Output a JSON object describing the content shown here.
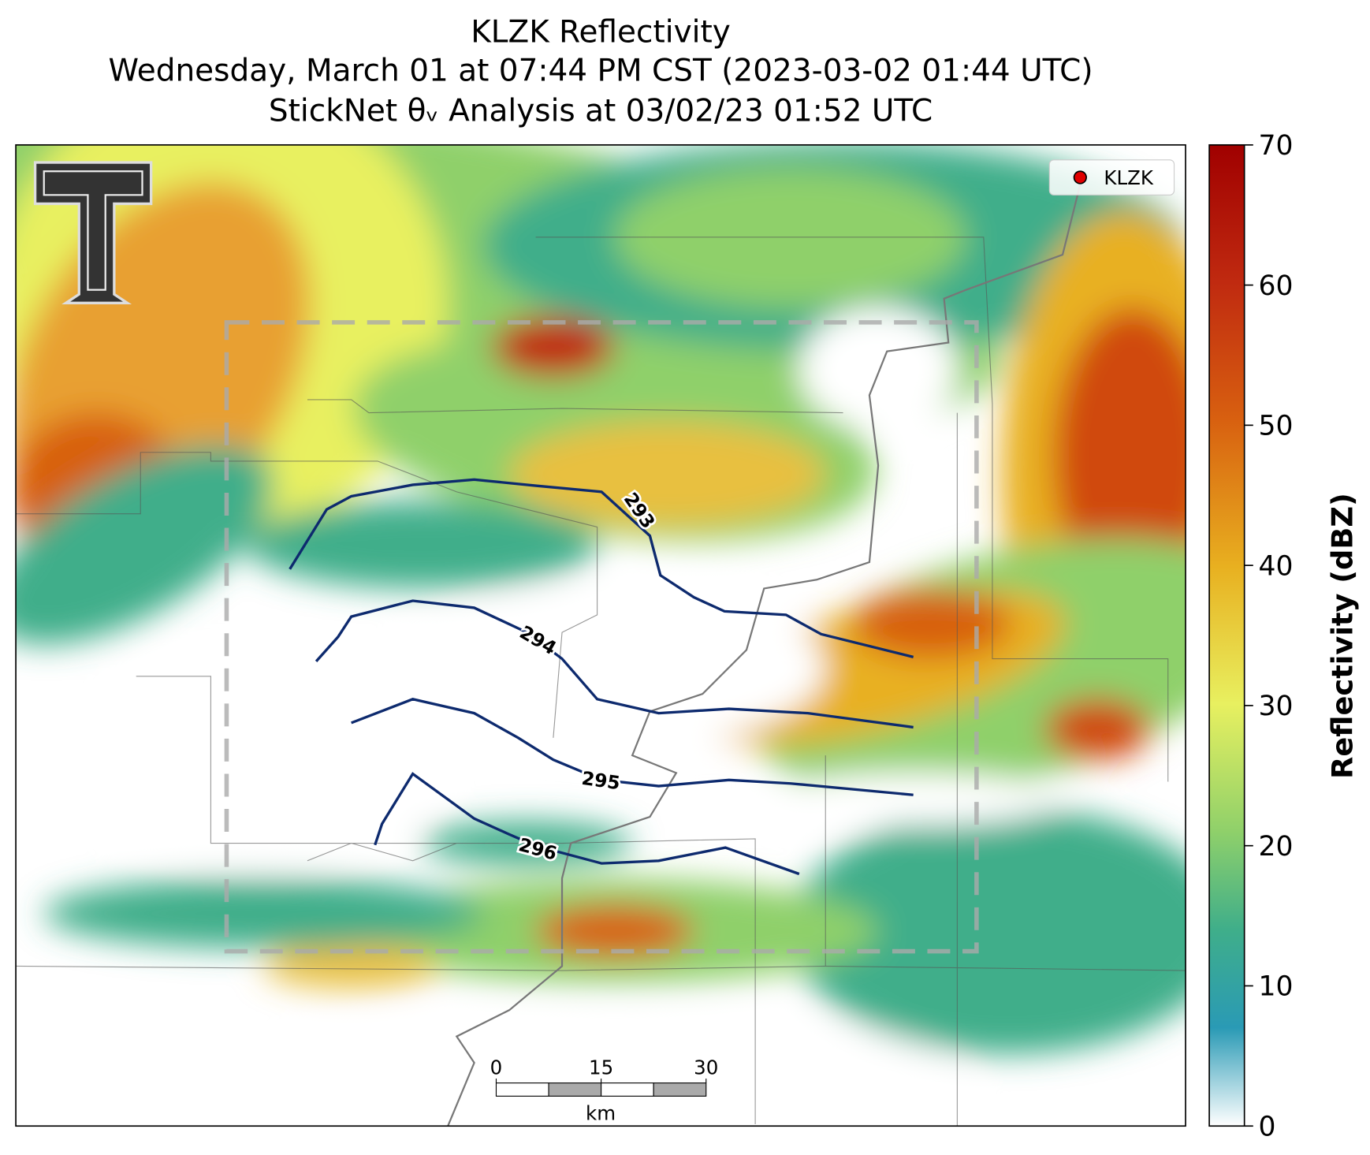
{
  "header": {
    "title_lines": [
      "KLZK Reflectivity",
      "Wednesday, March 01 at 07:44 PM CST (2023-03-02 01:44 UTC)",
      "StickNet θᵥ Analysis at 03/02/23 01:52 UTC"
    ]
  },
  "legend": {
    "label": "KLZK",
    "color": "#e00000"
  },
  "contours": {
    "color": "#0d2a6e",
    "levels": [
      293,
      294,
      295,
      296
    ]
  },
  "scale_bar": {
    "ticks": [
      0,
      15,
      30
    ],
    "unit": "km"
  },
  "colorbar": {
    "label": "Reflectivity (dBZ)",
    "lim": [
      0,
      70
    ],
    "ticks": [
      0,
      10,
      20,
      30,
      40,
      50,
      60,
      70
    ]
  }
}
